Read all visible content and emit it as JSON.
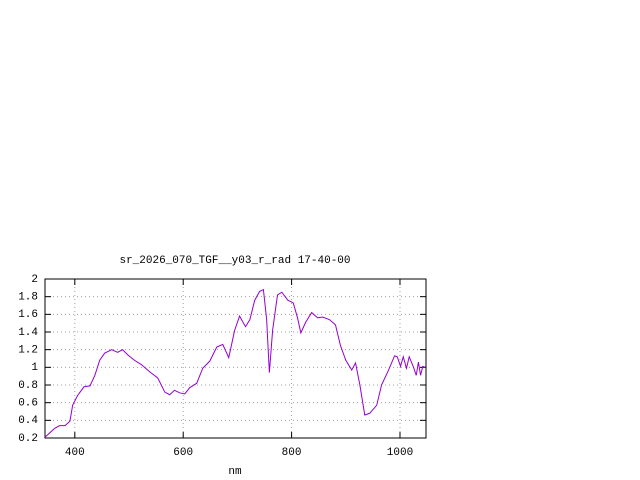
{
  "chart_data": {
    "type": "line",
    "title": "sr_2026_070_TGF__y03_r_rad 17-40-00",
    "x_label": "nm",
    "x": [
      345,
      354,
      363,
      372,
      382,
      391,
      396,
      405,
      417,
      428,
      437,
      446,
      455,
      468,
      479,
      488,
      498,
      510,
      523,
      538,
      553,
      566,
      575,
      584,
      594,
      603,
      612,
      625,
      636,
      649,
      662,
      673,
      684,
      695,
      704,
      715,
      723,
      732,
      741,
      748,
      754,
      759,
      765,
      774,
      782,
      793,
      803,
      811,
      817,
      826,
      837,
      848,
      857,
      870,
      881,
      890,
      900,
      911,
      918,
      926,
      935,
      944,
      957,
      966,
      979,
      990,
      995,
      1001,
      1006,
      1012,
      1017,
      1025,
      1030,
      1034,
      1038,
      1042,
      1047
    ],
    "values": [
      0.21,
      0.26,
      0.31,
      0.34,
      0.34,
      0.39,
      0.57,
      0.68,
      0.78,
      0.79,
      0.91,
      1.08,
      1.16,
      1.2,
      1.17,
      1.2,
      1.14,
      1.08,
      1.03,
      0.95,
      0.88,
      0.72,
      0.69,
      0.74,
      0.71,
      0.7,
      0.77,
      0.82,
      0.99,
      1.07,
      1.23,
      1.26,
      1.11,
      1.42,
      1.58,
      1.46,
      1.54,
      1.76,
      1.86,
      1.88,
      1.54,
      0.94,
      1.42,
      1.82,
      1.85,
      1.76,
      1.73,
      1.56,
      1.39,
      1.51,
      1.62,
      1.56,
      1.57,
      1.54,
      1.48,
      1.25,
      1.08,
      0.97,
      1.05,
      0.8,
      0.46,
      0.48,
      0.57,
      0.8,
      0.97,
      1.13,
      1.12,
      1.01,
      1.12,
      0.99,
      1.12,
      1.0,
      0.91,
      1.06,
      0.91,
      1.01,
      1.0
    ],
    "color": "#9400d3",
    "xlim": [
      345,
      1048
    ],
    "xticks": [
      400,
      600,
      800,
      1000
    ],
    "ylim": [
      0.2,
      2
    ],
    "yticks": [
      0.2,
      0.4,
      0.6,
      0.8,
      1,
      1.2,
      1.4,
      1.6,
      1.8,
      2
    ],
    "grid": true
  }
}
